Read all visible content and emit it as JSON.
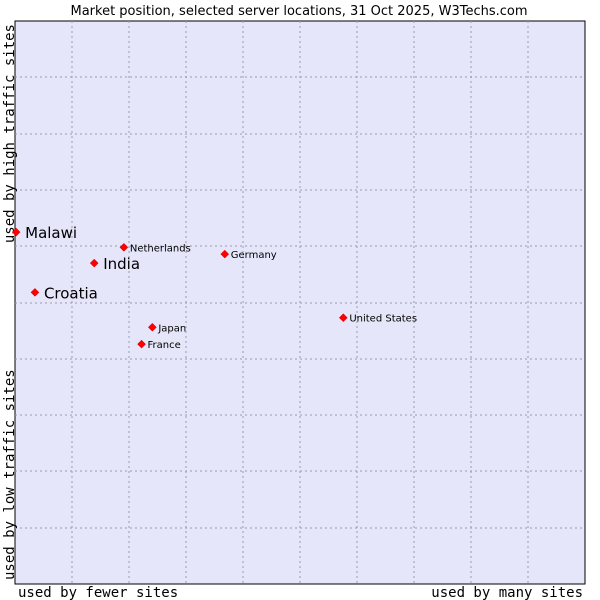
{
  "chart_data": {
    "type": "scatter",
    "title": "Market position, selected server locations, 31 Oct 2025, W3Techs.com",
    "xlabel_left": "used by fewer sites",
    "xlabel_right": "used by many sites",
    "ylabel_top": "used by high traffic sites",
    "ylabel_bottom": "used by low traffic sites",
    "xlim": [
      0,
      100
    ],
    "ylim": [
      0,
      100
    ],
    "grid": true,
    "marker_color": "#ff0000",
    "points": [
      {
        "name": "Malawi",
        "x": 0.2,
        "y": 62.5,
        "size": "large"
      },
      {
        "name": "Netherlands",
        "x": 19.1,
        "y": 59.8,
        "size": "small"
      },
      {
        "name": "India",
        "x": 13.9,
        "y": 57.0,
        "size": "large"
      },
      {
        "name": "Germany",
        "x": 36.8,
        "y": 58.6,
        "size": "small"
      },
      {
        "name": "Croatia",
        "x": 3.5,
        "y": 51.8,
        "size": "large"
      },
      {
        "name": "United States",
        "x": 57.6,
        "y": 47.3,
        "size": "small"
      },
      {
        "name": "Japan",
        "x": 24.1,
        "y": 45.6,
        "size": "small"
      },
      {
        "name": "France",
        "x": 22.2,
        "y": 42.6,
        "size": "small"
      }
    ]
  },
  "colors": {
    "plot_bg": "#e6e6fa",
    "grid": "#9999aa",
    "border": "#000000",
    "marker": "#ff0000"
  }
}
